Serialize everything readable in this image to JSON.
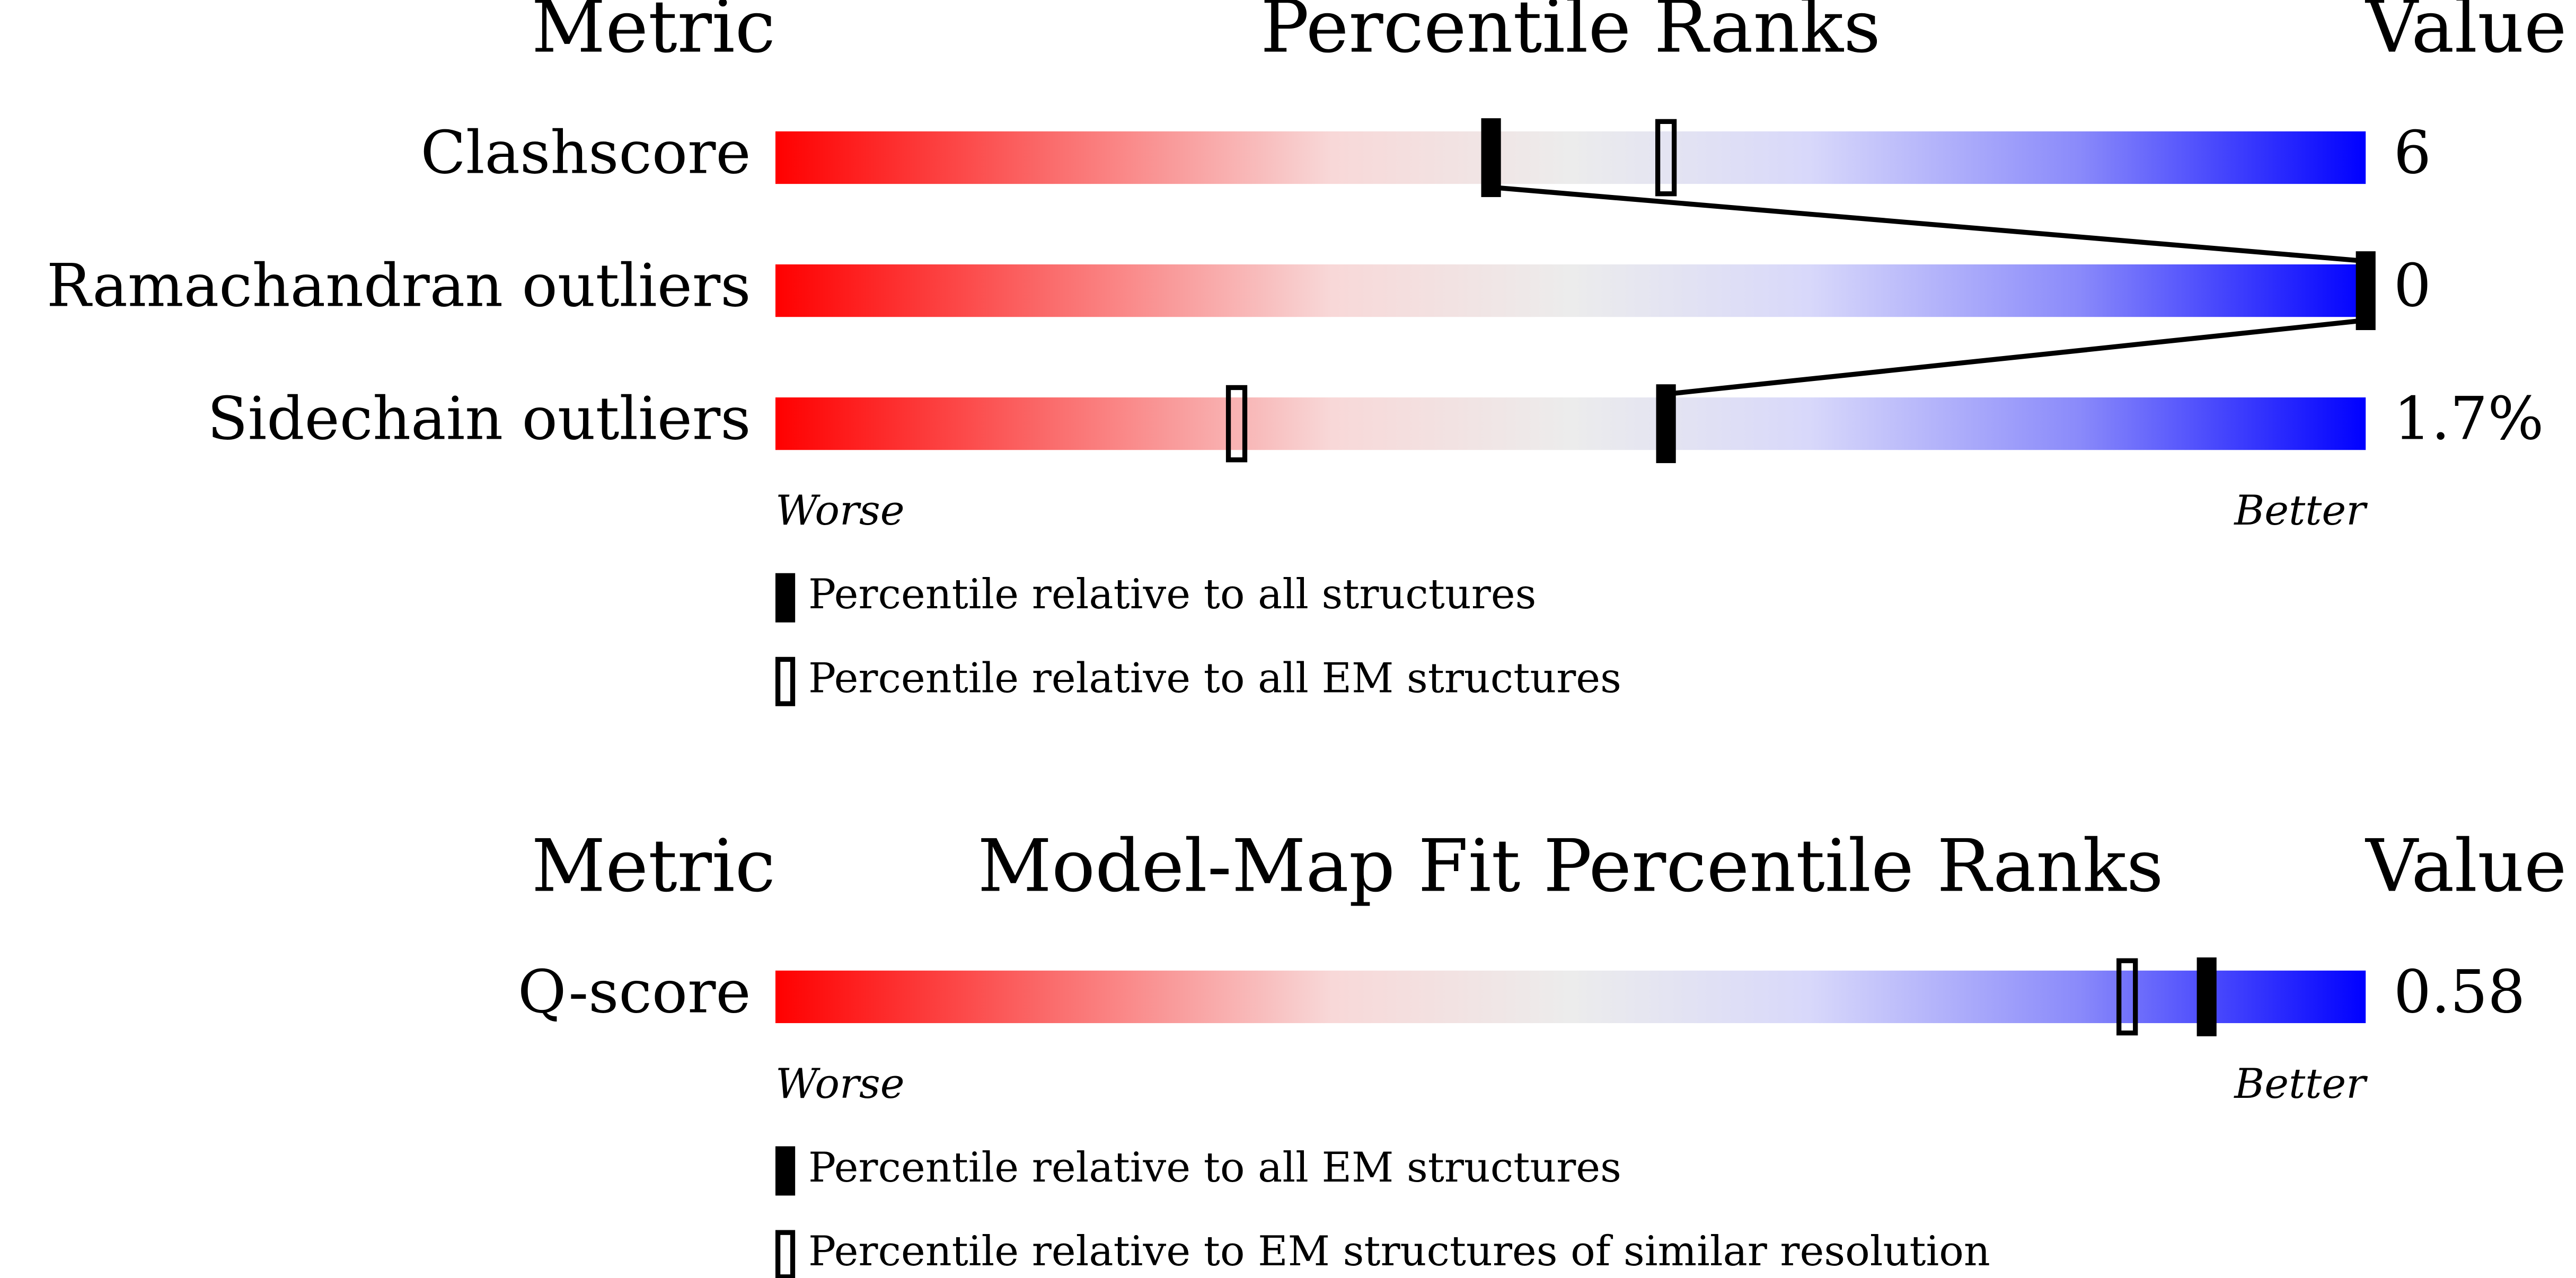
{
  "chart_data": [
    {
      "type": "slider",
      "title": "Percentile Ranks",
      "metric_header": "Metric",
      "value_header": "Value",
      "categories": [
        "Clashscore",
        "Ramachandran outliers",
        "Sidechain outliers"
      ],
      "metric_values": [
        "6",
        "0",
        "1.7%"
      ],
      "series": [
        {
          "name": "Percentile relative to all structures",
          "style": "filled",
          "color": "#000000",
          "values": [
            45,
            100,
            56
          ]
        },
        {
          "name": "Percentile relative to all EM structures",
          "style": "hollow",
          "color": "#000000",
          "values": [
            56,
            null,
            29
          ]
        }
      ],
      "xlim": [
        0,
        100
      ],
      "low_label": "Worse",
      "high_label": "Better"
    },
    {
      "type": "slider",
      "title": "Model-Map Fit Percentile Ranks",
      "metric_header": "Metric",
      "value_header": "Value",
      "categories": [
        "Q-score"
      ],
      "metric_values": [
        "0.58"
      ],
      "series": [
        {
          "name": "Percentile relative to all EM structures",
          "style": "filled",
          "color": "#000000",
          "values": [
            90
          ]
        },
        {
          "name": "Percentile relative to EM structures of similar resolution",
          "style": "hollow",
          "color": "#000000",
          "values": [
            85
          ]
        }
      ],
      "xlim": [
        0,
        100
      ],
      "low_label": "Worse",
      "high_label": "Better"
    }
  ]
}
